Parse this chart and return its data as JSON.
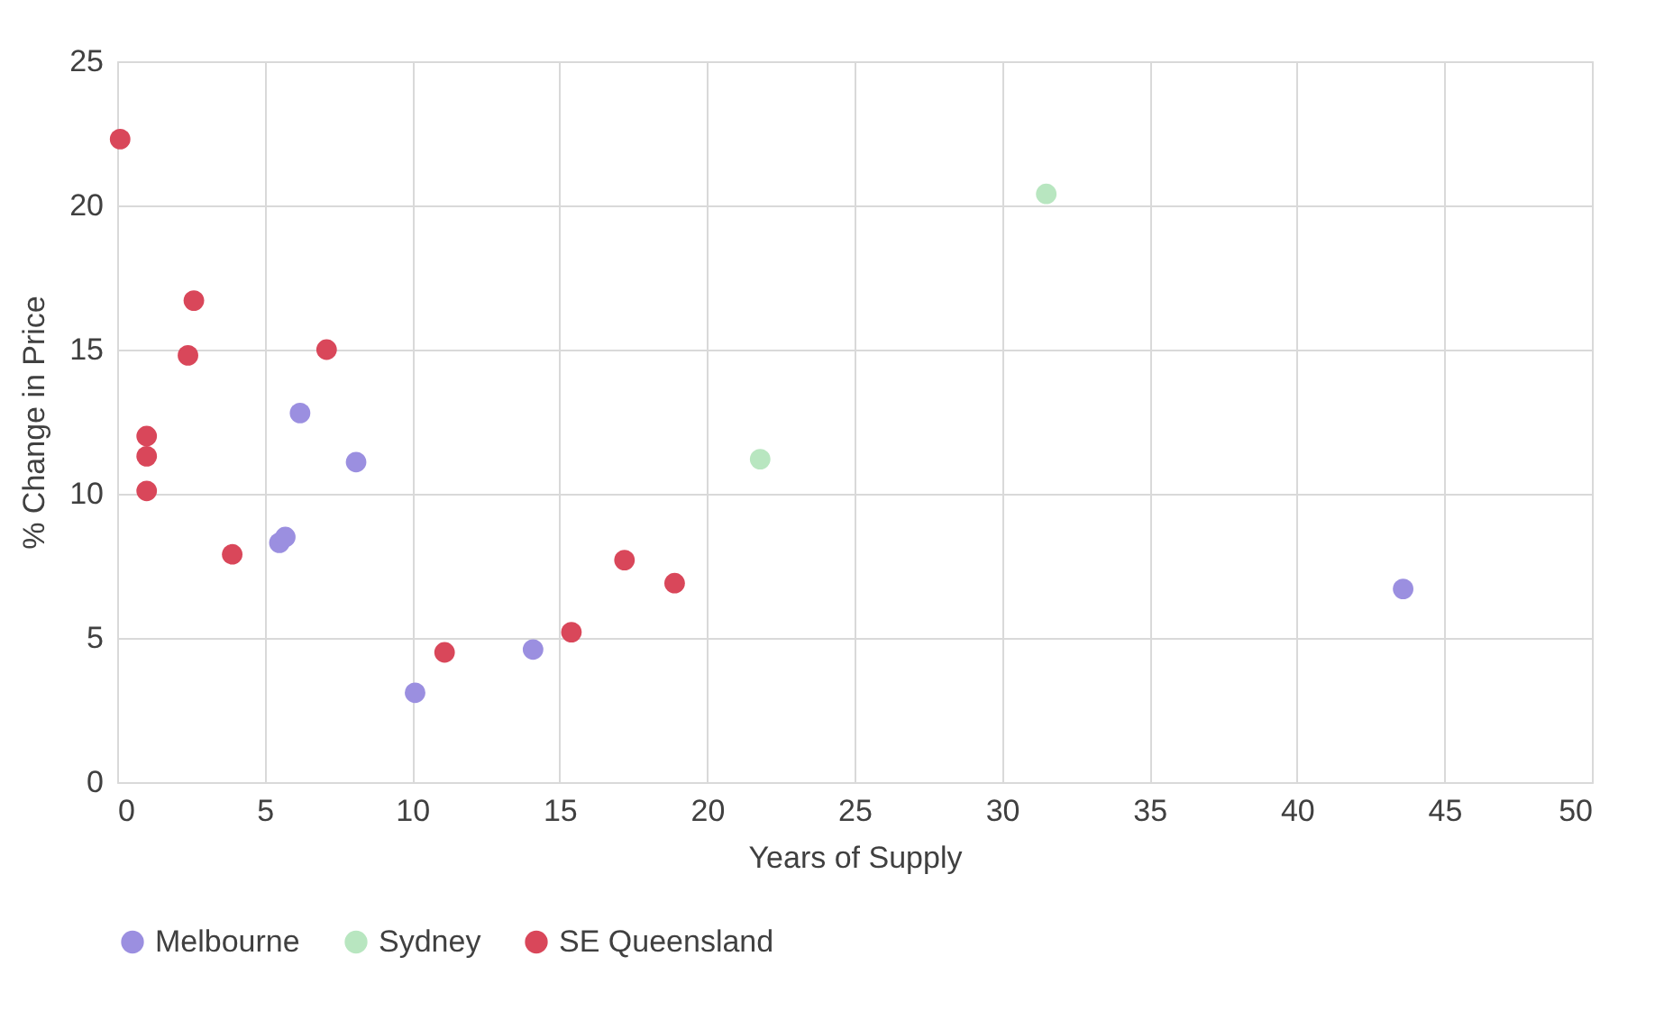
{
  "chart_data": {
    "type": "scatter",
    "xlabel": "Years of Supply",
    "ylabel": "% Change in Price",
    "xlim": [
      0,
      50
    ],
    "xticks": [
      0,
      5,
      10,
      15,
      20,
      25,
      30,
      35,
      40,
      45,
      50
    ],
    "ylim": [
      0,
      25
    ],
    "yticks": [
      0,
      5,
      10,
      15,
      20,
      25
    ],
    "grid": true,
    "legend": "bottom",
    "marker": "circle",
    "series": [
      {
        "name": "Melbourne",
        "color": "#9b8fe0",
        "x": [
          5.5,
          5.7,
          6.2,
          8.1,
          10.1,
          14.1,
          43.6
        ],
        "values": [
          8.3,
          8.5,
          12.8,
          11.1,
          3.1,
          4.6,
          6.7
        ]
      },
      {
        "name": "Sydney",
        "color": "#b8e6c0",
        "x": [
          21.8,
          31.5
        ],
        "values": [
          11.2,
          20.4
        ]
      },
      {
        "name": "SE Queensland",
        "color": "#d9475a",
        "x": [
          0.1,
          1.0,
          1.0,
          1.0,
          2.4,
          2.6,
          3.9,
          7.1,
          11.1,
          15.4,
          17.2,
          18.9
        ],
        "values": [
          22.3,
          12.0,
          11.3,
          10.1,
          14.8,
          16.7,
          7.9,
          15.0,
          4.5,
          5.2,
          7.7,
          6.9
        ]
      }
    ]
  }
}
